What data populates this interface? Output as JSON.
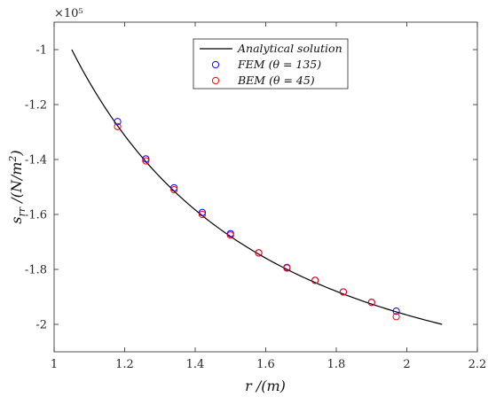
{
  "chart_data": {
    "type": "line",
    "xlabel": "r /(m)",
    "ylabel": "s_rr /(N/m²)",
    "y_exponent": "×10⁵",
    "xlim": [
      1,
      2.2
    ],
    "ylim": [
      -2.1,
      -0.9
    ],
    "x_ticks": [
      "1",
      "1.2",
      "1.4",
      "1.6",
      "1.8",
      "2",
      "2.2"
    ],
    "y_ticks": [
      "-1",
      "-1.2",
      "-1.4",
      "-1.6",
      "-1.8",
      "-2"
    ],
    "legend_position": "top-right",
    "series": [
      {
        "name": "Analytical solution",
        "style": "line",
        "color": "#000000",
        "x": [
          1.05,
          1.1,
          1.15,
          1.2,
          1.25,
          1.3,
          1.35,
          1.4,
          1.45,
          1.5,
          1.55,
          1.6,
          1.65,
          1.7,
          1.75,
          1.8,
          1.85,
          1.9,
          1.95,
          2.0,
          2.05,
          2.1
        ],
        "y": [
          -1.0,
          -1.1124,
          -1.2098,
          -1.2946,
          -1.3689,
          -1.4343,
          -1.4922,
          -1.5436,
          -1.5894,
          -1.6304,
          -1.6673,
          -1.7004,
          -1.7304,
          -1.7574,
          -1.782,
          -1.8043,
          -1.8246,
          -1.8432,
          -1.8601,
          -1.8756,
          -1.8898,
          -2.0
        ]
      },
      {
        "name": "FEM (θ = 135)",
        "style": "marker",
        "color": "#0000ff",
        "x": [
          1.18,
          1.26,
          1.34,
          1.42,
          1.5,
          1.58,
          1.66,
          1.74,
          1.82,
          1.9,
          1.97
        ],
        "y": [
          -1.262,
          -1.398,
          -1.503,
          -1.593,
          -1.67,
          -1.74,
          -1.793,
          -1.84,
          -1.882,
          -1.92,
          -1.952
        ]
      },
      {
        "name": "BEM (θ = 45)",
        "style": "marker",
        "color": "#ff0000",
        "x": [
          1.18,
          1.26,
          1.34,
          1.42,
          1.5,
          1.58,
          1.66,
          1.74,
          1.82,
          1.9,
          1.97
        ],
        "y": [
          -1.28,
          -1.405,
          -1.51,
          -1.6,
          -1.675,
          -1.74,
          -1.795,
          -1.84,
          -1.882,
          -1.92,
          -1.972
        ]
      }
    ]
  }
}
